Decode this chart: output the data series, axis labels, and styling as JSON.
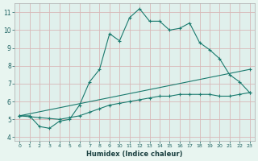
{
  "xlabel": "Humidex (Indice chaleur)",
  "background_color": "#e8f5f0",
  "plot_bg_color": "#e0f0ec",
  "grid_color": "#d8b8b8",
  "line_color": "#1a7a6e",
  "xlim": [
    -0.5,
    23.5
  ],
  "ylim": [
    3.8,
    11.5
  ],
  "yticks": [
    4,
    5,
    6,
    7,
    8,
    9,
    10,
    11
  ],
  "xticks": [
    0,
    1,
    2,
    3,
    4,
    5,
    6,
    7,
    8,
    9,
    10,
    11,
    12,
    13,
    14,
    15,
    16,
    17,
    18,
    19,
    20,
    21,
    22,
    23
  ],
  "series1_x": [
    0,
    1,
    2,
    3,
    4,
    5,
    6,
    7,
    8,
    9,
    10,
    11,
    12,
    13,
    14,
    15,
    16,
    17,
    18,
    19,
    20,
    21,
    22,
    23
  ],
  "series1_y": [
    5.2,
    5.2,
    4.6,
    4.5,
    4.9,
    5.0,
    5.8,
    7.1,
    7.8,
    9.8,
    9.4,
    10.7,
    11.2,
    10.5,
    10.5,
    10.0,
    10.1,
    10.4,
    9.3,
    8.9,
    8.4,
    7.5,
    7.1,
    6.5
  ],
  "series2_x": [
    0,
    1,
    2,
    3,
    4,
    5,
    6,
    7,
    8,
    9,
    10,
    11,
    12,
    13,
    14,
    15,
    16,
    17,
    18,
    19,
    20,
    21,
    22,
    23
  ],
  "series2_y": [
    5.2,
    5.15,
    5.1,
    5.05,
    5.0,
    5.1,
    5.2,
    5.4,
    5.6,
    5.8,
    5.9,
    6.0,
    6.1,
    6.2,
    6.3,
    6.3,
    6.4,
    6.4,
    6.4,
    6.4,
    6.3,
    6.3,
    6.4,
    6.5
  ],
  "series3_x": [
    0,
    23
  ],
  "series3_y": [
    5.2,
    7.8
  ]
}
